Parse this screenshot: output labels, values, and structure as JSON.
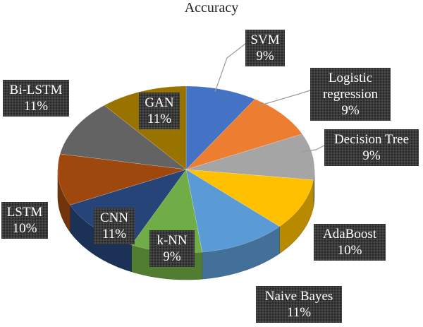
{
  "chart_data": {
    "type": "pie",
    "title": "Accuracy",
    "three_d": true,
    "slices": [
      {
        "label": "SVM",
        "value": 9,
        "display": "9%",
        "color": "#4472c4"
      },
      {
        "label": "Logistic regression",
        "value": 9,
        "display": "9%",
        "color": "#ed7d31"
      },
      {
        "label": "Decision Tree",
        "value": 9,
        "display": "9%",
        "color": "#a5a5a5"
      },
      {
        "label": "AdaBoost",
        "value": 10,
        "display": "10%",
        "color": "#ffc000"
      },
      {
        "label": "Naive Bayes",
        "value": 11,
        "display": "11%",
        "color": "#5b9bd5"
      },
      {
        "label": "k-NN",
        "value": 9,
        "display": "9%",
        "color": "#70ad47"
      },
      {
        "label": "CNN",
        "value": 11,
        "display": "11%",
        "color": "#264478"
      },
      {
        "label": "LSTM",
        "value": 10,
        "display": "10%",
        "color": "#9e480e"
      },
      {
        "label": "Bi-LSTM",
        "value": 11,
        "display": "11%",
        "color": "#636363"
      },
      {
        "label": "GAN",
        "value": 11,
        "display": "11%",
        "color": "#997300"
      }
    ]
  }
}
